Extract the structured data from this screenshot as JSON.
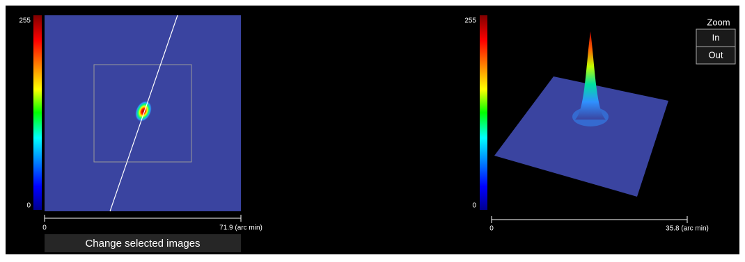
{
  "left_panel": {
    "colorbar": {
      "max_label": "255",
      "min_label": "0"
    },
    "scale": {
      "start_label": "0",
      "end_label": "71.9 (arc min)"
    },
    "button": "Change selected images"
  },
  "right_panel": {
    "colorbar": {
      "max_label": "255",
      "min_label": "0"
    },
    "scale": {
      "start_label": "0",
      "end_label": "35.8 (arc min)"
    }
  },
  "zoom": {
    "title": "Zoom",
    "in": "In",
    "out": "Out"
  }
}
